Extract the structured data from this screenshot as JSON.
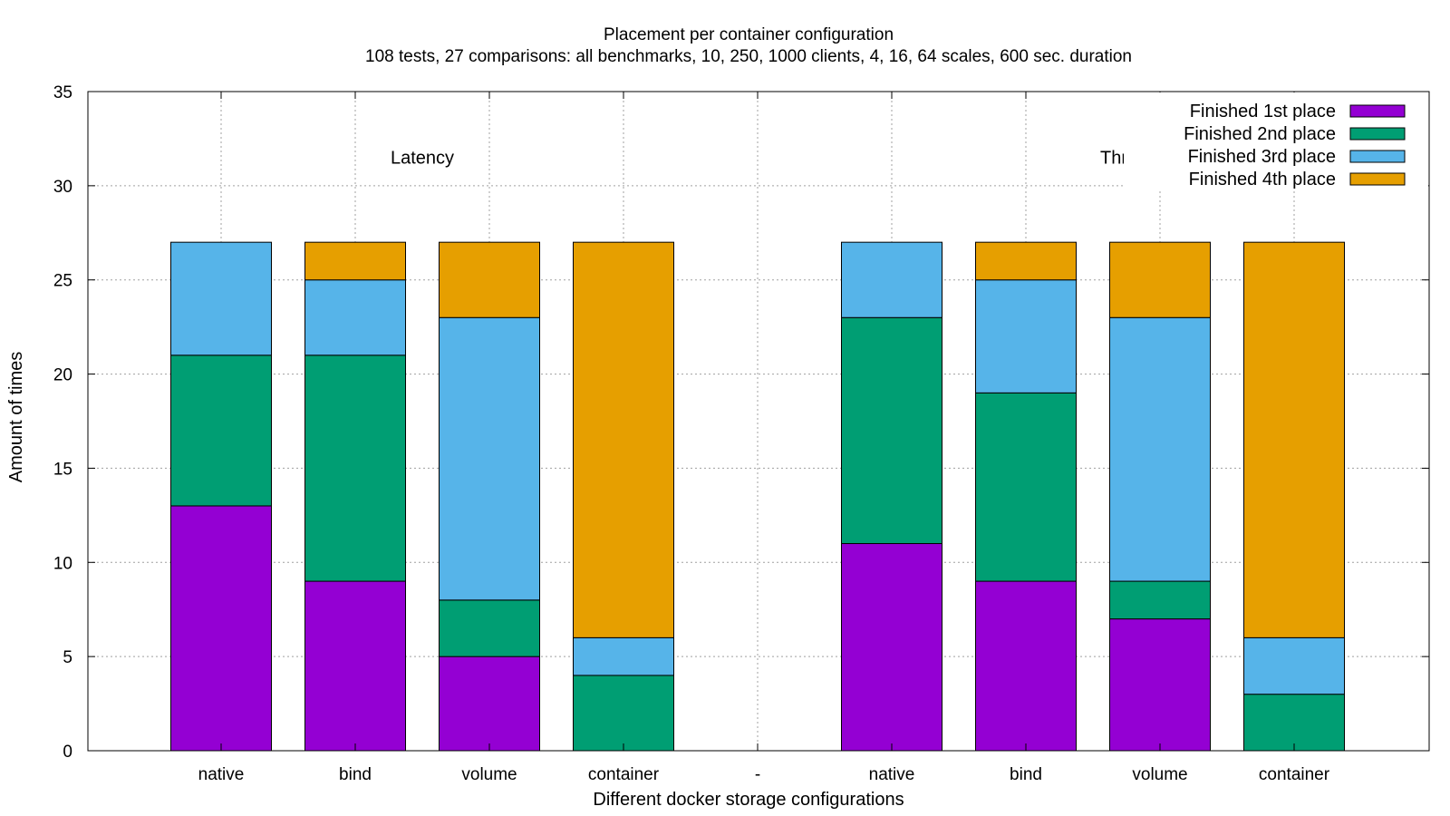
{
  "chart_data": {
    "type": "bar",
    "stacked": true,
    "title": "Placement per container configuration",
    "subtitle": "108 tests, 27 comparisons: all benchmarks, 10, 250, 1000 clients, 4, 16, 64 scales, 600 sec. duration",
    "xlabel": "Different docker storage configurations",
    "ylabel": "Amount of times",
    "ylim": [
      0,
      35
    ],
    "yticks": [
      0,
      5,
      10,
      15,
      20,
      25,
      30,
      35
    ],
    "grid": true,
    "legend_position": "top-right",
    "categories": [
      "native",
      "bind",
      "volume",
      "container",
      "-",
      "native",
      "bind",
      "volume",
      "container"
    ],
    "series": [
      {
        "name": "Finished 1st place",
        "color": "#9400d3",
        "values": [
          13,
          9,
          5,
          0,
          0,
          11,
          9,
          7,
          0
        ]
      },
      {
        "name": "Finished 2nd place",
        "color": "#009e73",
        "values": [
          8,
          12,
          3,
          4,
          0,
          12,
          10,
          2,
          3
        ]
      },
      {
        "name": "Finished 3rd place",
        "color": "#56b4e9",
        "values": [
          6,
          4,
          15,
          2,
          0,
          4,
          6,
          14,
          3
        ]
      },
      {
        "name": "Finished 4th place",
        "color": "#e69f00",
        "values": [
          0,
          2,
          4,
          21,
          0,
          0,
          2,
          4,
          21
        ]
      }
    ],
    "annotations": [
      {
        "text": "Latency",
        "category_index": 1.5,
        "y": 31.5
      },
      {
        "text": "Throughput",
        "category_index": 6.9,
        "y": 31.5
      }
    ]
  }
}
